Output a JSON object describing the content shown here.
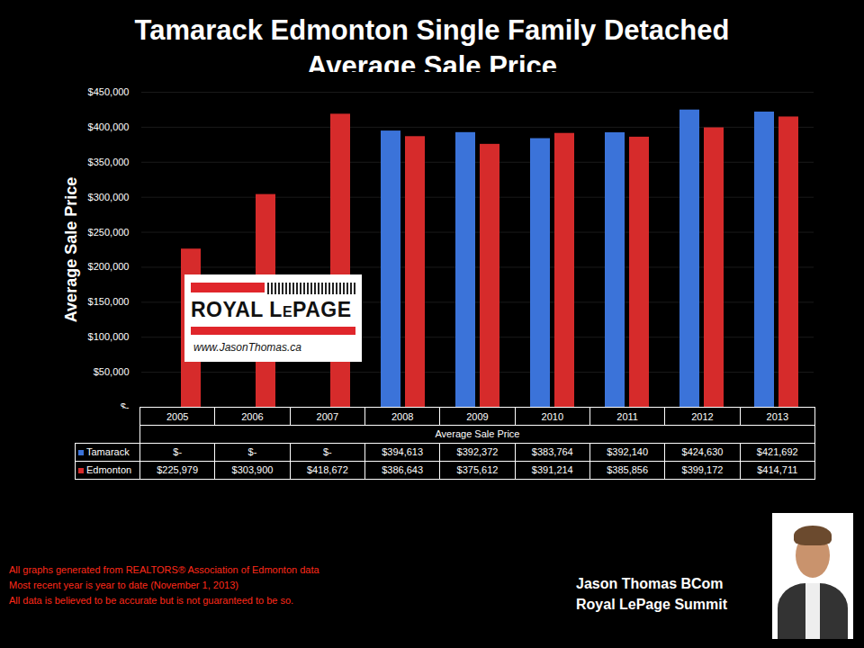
{
  "chart_data": {
    "type": "bar",
    "title": "Tamarack Edmonton Single Family Detached",
    "subtitle": "Average Sale Price",
    "x_label": "Average Sale Price",
    "y_label": "Average Sale Price",
    "categories": [
      "2005",
      "2006",
      "2007",
      "2008",
      "2009",
      "2010",
      "2011",
      "2012",
      "2013"
    ],
    "series": [
      {
        "name": "Tamarack",
        "color": "#3b73d9",
        "values": [
          0,
          0,
          0,
          394613,
          392372,
          383764,
          392140,
          424630,
          421692
        ],
        "value_labels": [
          "$-",
          "$-",
          "$-",
          "$394,613",
          "$392,372",
          "$383,764",
          "$392,140",
          "$424,630",
          "$421,692"
        ]
      },
      {
        "name": "Edmonton",
        "color": "#d62b2b",
        "values": [
          225979,
          303900,
          418672,
          386643,
          375612,
          391214,
          385856,
          399172,
          414711
        ],
        "value_labels": [
          "$225,979",
          "$303,900",
          "$418,672",
          "$386,643",
          "$375,612",
          "$391,214",
          "$385,856",
          "$399,172",
          "$414,711"
        ]
      }
    ],
    "ylim": [
      0,
      450000
    ],
    "yticks": [
      {
        "value": 0,
        "label": "$-"
      },
      {
        "value": 50000,
        "label": "$50,000"
      },
      {
        "value": 100000,
        "label": "$100,000"
      },
      {
        "value": 150000,
        "label": "$150,000"
      },
      {
        "value": 200000,
        "label": "$200,000"
      },
      {
        "value": 250000,
        "label": "$250,000"
      },
      {
        "value": 300000,
        "label": "$300,000"
      },
      {
        "value": 350000,
        "label": "$350,000"
      },
      {
        "value": 400000,
        "label": "$400,000"
      },
      {
        "value": 450000,
        "label": "$450,000"
      }
    ],
    "grid": true,
    "legend": "bottom",
    "logo": [
      "ROYAL LePAGE",
      "www.JasonThomas.ca"
    ],
    "footnotes": [
      "All graphs generated from REALTORS® Association of Edmonton data",
      "Most recent year is year to date (November 1, 2013)",
      "All data is believed to be accurate but is not guaranteed to be so."
    ],
    "credits": [
      "Jason Thomas BCom",
      "Royal LePage Summit"
    ]
  }
}
